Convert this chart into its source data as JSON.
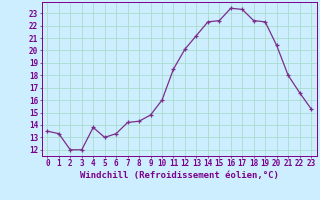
{
  "x": [
    0,
    1,
    2,
    3,
    4,
    5,
    6,
    7,
    8,
    9,
    10,
    11,
    12,
    13,
    14,
    15,
    16,
    17,
    18,
    19,
    20,
    21,
    22,
    23
  ],
  "y": [
    13.5,
    13.3,
    12.0,
    12.0,
    13.8,
    13.0,
    13.3,
    14.2,
    14.3,
    14.8,
    16.0,
    18.5,
    20.1,
    21.2,
    22.3,
    22.4,
    23.4,
    23.3,
    22.4,
    22.3,
    20.4,
    18.0,
    16.6,
    15.3
  ],
  "line_color": "#7B2D8B",
  "marker": "+",
  "marker_size": 3,
  "bg_color": "#cceeff",
  "grid_color": "#aaddcc",
  "xlabel": "Windchill (Refroidissement éolien,°C)",
  "ylabel_ticks": [
    12,
    13,
    14,
    15,
    16,
    17,
    18,
    19,
    20,
    21,
    22,
    23
  ],
  "xlim": [
    -0.5,
    23.5
  ],
  "ylim": [
    11.5,
    23.9
  ],
  "xticks": [
    0,
    1,
    2,
    3,
    4,
    5,
    6,
    7,
    8,
    9,
    10,
    11,
    12,
    13,
    14,
    15,
    16,
    17,
    18,
    19,
    20,
    21,
    22,
    23
  ],
  "tick_color": "#7B008B",
  "label_fontsize": 6.5,
  "tick_fontsize": 5.5,
  "linewidth": 0.9,
  "markerwidth": 0.9
}
